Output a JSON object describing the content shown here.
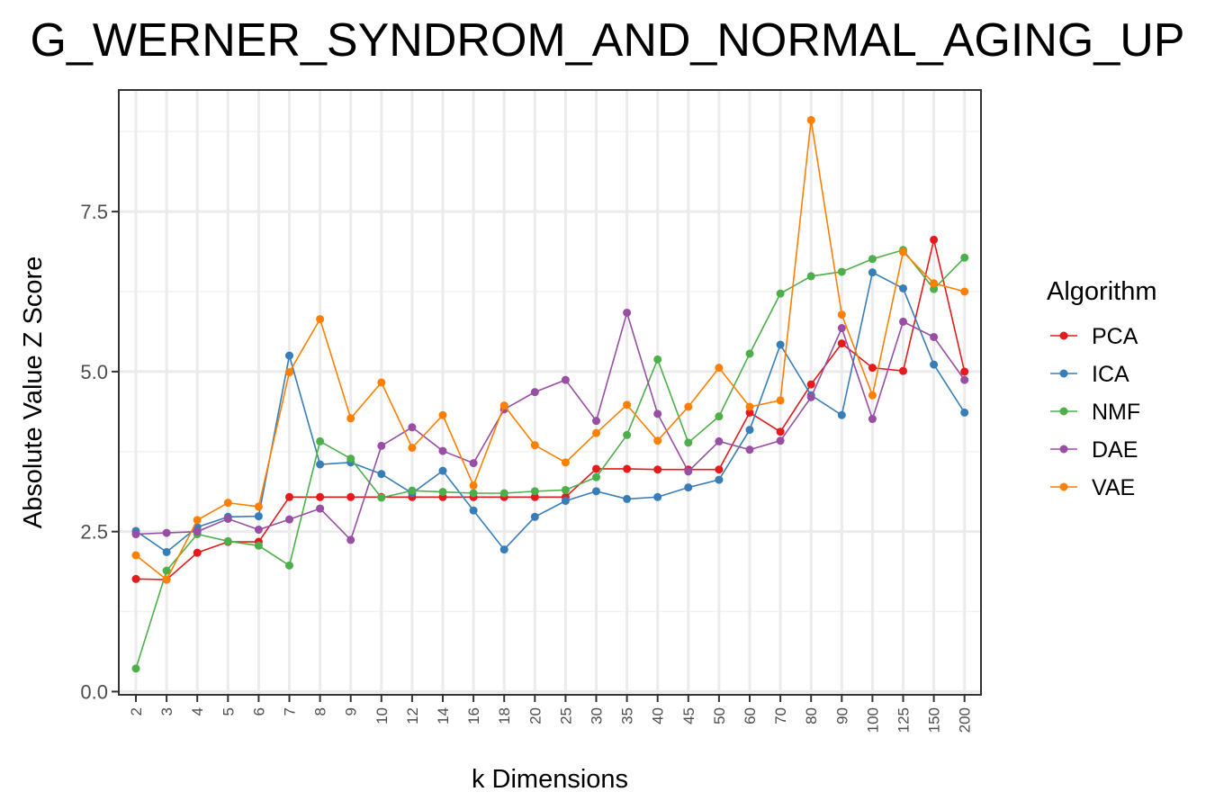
{
  "chart_data": {
    "type": "line",
    "title": "G_WERNER_SYNDROM_AND_NORMAL_AGING_UP",
    "xlabel": "k Dimensions",
    "ylabel": "Absolute Value Z Score",
    "categories": [
      "2",
      "3",
      "4",
      "5",
      "6",
      "7",
      "8",
      "9",
      "10",
      "12",
      "14",
      "16",
      "18",
      "20",
      "25",
      "30",
      "35",
      "40",
      "45",
      "50",
      "60",
      "70",
      "80",
      "90",
      "100",
      "125",
      "150",
      "200"
    ],
    "y_ticks": [
      "0.0",
      "2.5",
      "5.0",
      "7.5"
    ],
    "y_tick_values": [
      0,
      2.5,
      5.0,
      7.5
    ],
    "ylim": [
      -0.05,
      9.4
    ],
    "grid": true,
    "legend": {
      "title": "Algorithm",
      "position": "right"
    },
    "series": [
      {
        "name": "PCA",
        "color": "#E41A1C",
        "values": [
          1.76,
          1.75,
          2.17,
          2.34,
          2.34,
          3.04,
          3.04,
          3.04,
          3.04,
          3.04,
          3.04,
          3.04,
          3.04,
          3.04,
          3.04,
          3.48,
          3.48,
          3.47,
          3.47,
          3.47,
          4.36,
          4.06,
          4.8,
          5.44,
          5.06,
          5.01,
          7.06,
          5.0
        ]
      },
      {
        "name": "ICA",
        "color": "#377EB8",
        "values": [
          2.51,
          2.18,
          2.57,
          2.73,
          2.74,
          5.25,
          3.55,
          3.58,
          3.4,
          3.1,
          3.45,
          2.83,
          2.22,
          2.73,
          2.98,
          3.13,
          3.01,
          3.04,
          3.19,
          3.31,
          4.09,
          5.42,
          4.63,
          4.32,
          6.55,
          6.3,
          5.11,
          4.36
        ]
      },
      {
        "name": "NMF",
        "color": "#4DAF4A",
        "values": [
          0.36,
          1.89,
          2.46,
          2.35,
          2.28,
          1.97,
          3.91,
          3.64,
          3.03,
          3.14,
          3.12,
          3.1,
          3.1,
          3.13,
          3.15,
          3.35,
          4.01,
          5.19,
          3.89,
          4.3,
          5.28,
          6.22,
          6.49,
          6.56,
          6.76,
          6.9,
          6.29,
          6.78
        ]
      },
      {
        "name": "DAE",
        "color": "#984EA3",
        "values": [
          2.46,
          2.48,
          2.5,
          2.7,
          2.53,
          2.69,
          2.86,
          2.37,
          3.84,
          4.13,
          3.76,
          3.57,
          4.41,
          4.68,
          4.87,
          4.23,
          5.92,
          4.34,
          3.44,
          3.91,
          3.78,
          3.92,
          4.6,
          5.68,
          4.26,
          5.78,
          5.54,
          4.87
        ]
      },
      {
        "name": "VAE",
        "color": "#FF7F00",
        "values": [
          2.13,
          1.75,
          2.68,
          2.95,
          2.89,
          4.99,
          5.82,
          4.27,
          4.83,
          3.81,
          4.32,
          3.22,
          4.47,
          3.85,
          3.58,
          4.04,
          4.48,
          3.92,
          4.45,
          5.06,
          4.45,
          4.55,
          8.93,
          5.89,
          4.63,
          6.87,
          6.38,
          6.25
        ]
      }
    ]
  }
}
